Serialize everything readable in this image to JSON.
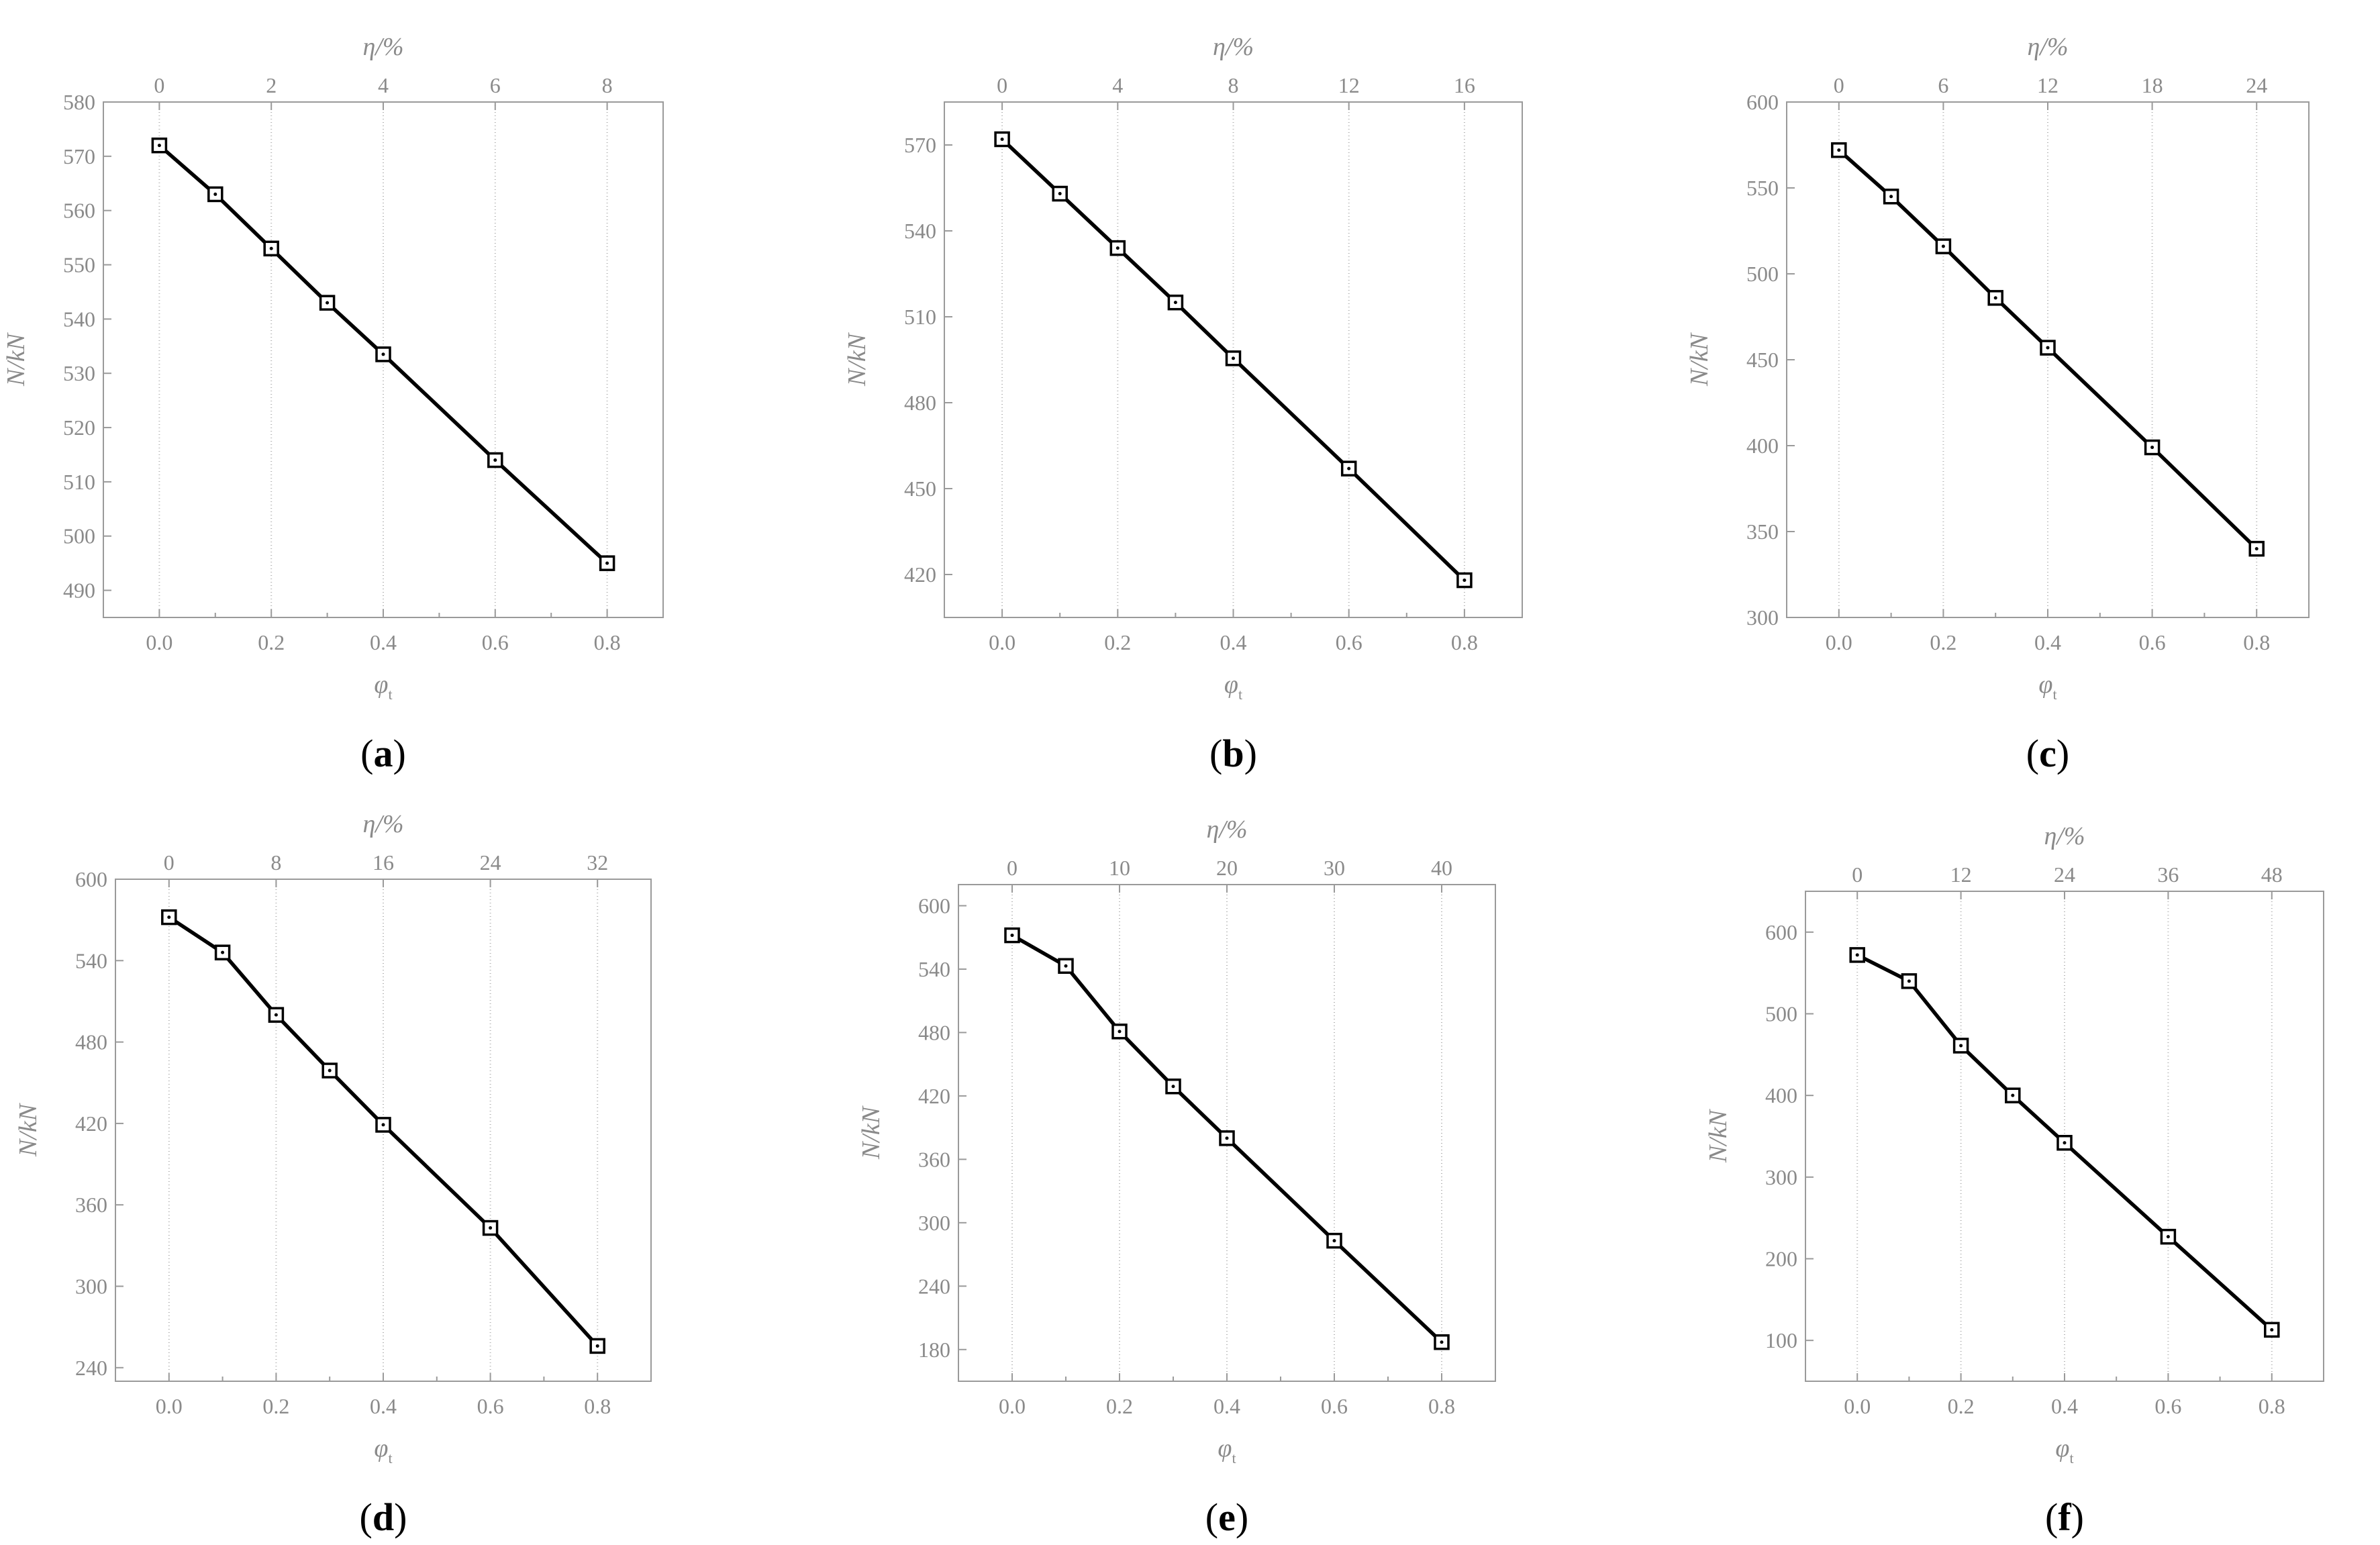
{
  "chart_data": [
    {
      "type": "line",
      "panel": "a",
      "xlabel": "φ",
      "xlabel_sub": "t",
      "ylabel": "N/kN",
      "top_xlabel": "η/%",
      "xlim": [
        -0.1,
        0.9
      ],
      "ylim": [
        485,
        580
      ],
      "x_ticks": [
        0.0,
        0.2,
        0.4,
        0.6,
        0.8
      ],
      "x_tick_labels": [
        "0.0",
        "0.2",
        "0.4",
        "0.6",
        "0.8"
      ],
      "y_ticks": [
        490,
        500,
        510,
        520,
        530,
        540,
        550,
        560,
        570,
        580
      ],
      "top_ticks": [
        0,
        2,
        4,
        6,
        8
      ],
      "x": [
        0.0,
        0.1,
        0.2,
        0.3,
        0.4,
        0.6,
        0.8
      ],
      "values": [
        572,
        563,
        553,
        543,
        533.5,
        514,
        495
      ]
    },
    {
      "type": "line",
      "panel": "b",
      "xlabel": "φ",
      "xlabel_sub": "t",
      "ylabel": "N/kN",
      "top_xlabel": "η/%",
      "xlim": [
        -0.1,
        0.9
      ],
      "ylim": [
        405,
        585
      ],
      "x_ticks": [
        0.0,
        0.2,
        0.4,
        0.6,
        0.8
      ],
      "x_tick_labels": [
        "0.0",
        "0.2",
        "0.4",
        "0.6",
        "0.8"
      ],
      "y_ticks": [
        420,
        450,
        480,
        510,
        540,
        570
      ],
      "top_ticks": [
        0,
        4,
        8,
        12,
        16
      ],
      "x": [
        0.0,
        0.1,
        0.2,
        0.3,
        0.4,
        0.6,
        0.8
      ],
      "values": [
        572,
        553,
        534,
        515,
        495.5,
        457,
        418
      ]
    },
    {
      "type": "line",
      "panel": "c",
      "xlabel": "φ",
      "xlabel_sub": "t",
      "ylabel": "N/kN",
      "top_xlabel": "η/%",
      "xlim": [
        -0.1,
        0.9
      ],
      "ylim": [
        300,
        600
      ],
      "x_ticks": [
        0.0,
        0.2,
        0.4,
        0.6,
        0.8
      ],
      "x_tick_labels": [
        "0.0",
        "0.2",
        "0.4",
        "0.6",
        "0.8"
      ],
      "y_ticks": [
        300,
        350,
        400,
        450,
        500,
        550,
        600
      ],
      "top_ticks": [
        0,
        6,
        12,
        18,
        24
      ],
      "x": [
        0.0,
        0.1,
        0.2,
        0.3,
        0.4,
        0.6,
        0.8
      ],
      "values": [
        572,
        545,
        516,
        486,
        457,
        399,
        340
      ]
    },
    {
      "type": "line",
      "panel": "d",
      "xlabel": "φ",
      "xlabel_sub": "t",
      "ylabel": "N/kN",
      "top_xlabel": "η/%",
      "xlim": [
        -0.1,
        0.9
      ],
      "ylim": [
        230,
        600
      ],
      "x_ticks": [
        0.0,
        0.2,
        0.4,
        0.6,
        0.8
      ],
      "x_tick_labels": [
        "0.0",
        "0.2",
        "0.4",
        "0.6",
        "0.8"
      ],
      "y_ticks": [
        240,
        300,
        360,
        420,
        480,
        540,
        600
      ],
      "top_ticks": [
        0,
        8,
        16,
        24,
        32
      ],
      "x": [
        0.0,
        0.1,
        0.2,
        0.3,
        0.4,
        0.6,
        0.8
      ],
      "values": [
        572,
        546,
        500,
        459,
        419,
        343,
        256
      ]
    },
    {
      "type": "line",
      "panel": "e",
      "xlabel": "φ",
      "xlabel_sub": "t",
      "ylabel": "N/kN",
      "top_xlabel": "η/%",
      "xlim": [
        -0.1,
        0.9
      ],
      "ylim": [
        150,
        620
      ],
      "x_ticks": [
        0.0,
        0.2,
        0.4,
        0.6,
        0.8
      ],
      "x_tick_labels": [
        "0.0",
        "0.2",
        "0.4",
        "0.6",
        "0.8"
      ],
      "y_ticks": [
        180,
        240,
        300,
        360,
        420,
        480,
        540,
        600
      ],
      "top_ticks": [
        0,
        10,
        20,
        30,
        40
      ],
      "x": [
        0.0,
        0.1,
        0.2,
        0.3,
        0.4,
        0.6,
        0.8
      ],
      "values": [
        572,
        543,
        481,
        429,
        380,
        283,
        187
      ]
    },
    {
      "type": "line",
      "panel": "f",
      "xlabel": "φ",
      "xlabel_sub": "t",
      "ylabel": "N/kN",
      "top_xlabel": "η/%",
      "xlim": [
        -0.1,
        0.9
      ],
      "ylim": [
        50,
        650
      ],
      "x_ticks": [
        0.0,
        0.2,
        0.4,
        0.6,
        0.8
      ],
      "x_tick_labels": [
        "0.0",
        "0.2",
        "0.4",
        "0.6",
        "0.8"
      ],
      "y_ticks": [
        100,
        200,
        300,
        400,
        500,
        600
      ],
      "top_ticks": [
        0,
        12,
        24,
        36,
        48
      ],
      "x": [
        0.0,
        0.1,
        0.2,
        0.3,
        0.4,
        0.6,
        0.8
      ],
      "values": [
        572,
        540,
        461,
        400,
        342,
        227,
        113
      ]
    }
  ],
  "panel_labels": [
    "a",
    "b",
    "c",
    "d",
    "e",
    "f"
  ]
}
